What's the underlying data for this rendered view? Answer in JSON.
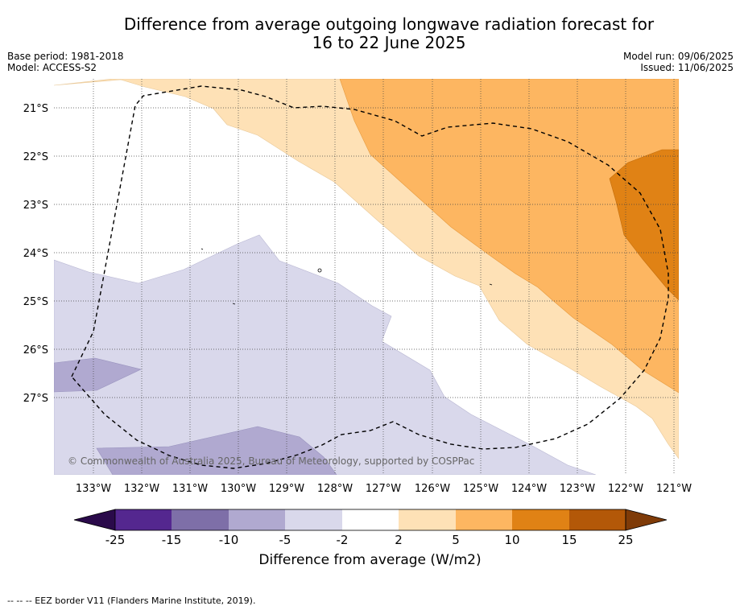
{
  "title": {
    "line1": "Difference from average outgoing longwave radiation forecast for",
    "line2": "16 to 22 June 2025"
  },
  "meta_left": {
    "base_period": "Base period: 1981-2018",
    "model": "Model: ACCESS-S2"
  },
  "meta_right": {
    "model_run": "Model run: 09/06/2025",
    "issued": "Issued: 11/06/2025"
  },
  "copyright": "© Commonwealth of Australia 2025, Bureau of Meteorology, supported by COSPPac",
  "map": {
    "lat_labels": [
      "21°S",
      "22°S",
      "23°S",
      "24°S",
      "25°S",
      "26°S",
      "27°S"
    ],
    "lon_labels": [
      "133°W",
      "132°W",
      "131°W",
      "130°W",
      "129°W",
      "128°W",
      "127°W",
      "126°W",
      "125°W",
      "124°W",
      "123°W",
      "122°W",
      "121°W"
    ]
  },
  "colorbar": {
    "label": "Difference from average (W/m2)",
    "ticks": [
      "-25",
      "-15",
      "-10",
      "-5",
      "-2",
      "2",
      "5",
      "10",
      "15",
      "25"
    ],
    "colors": {
      "below_min": "#2a0a4a",
      "b1": "#54278f",
      "b2": "#7e6fa8",
      "b3": "#b0a9d0",
      "b4": "#d9d8eb",
      "b5": "#ffffff",
      "b6": "#fee1b6",
      "b7": "#fdb661",
      "b8": "#e08215",
      "b9": "#b35808",
      "above_max": "#7f3b08"
    }
  },
  "footer": "--  --  -- EEZ border V11 (Flanders Marine Institute, 2019)."
}
